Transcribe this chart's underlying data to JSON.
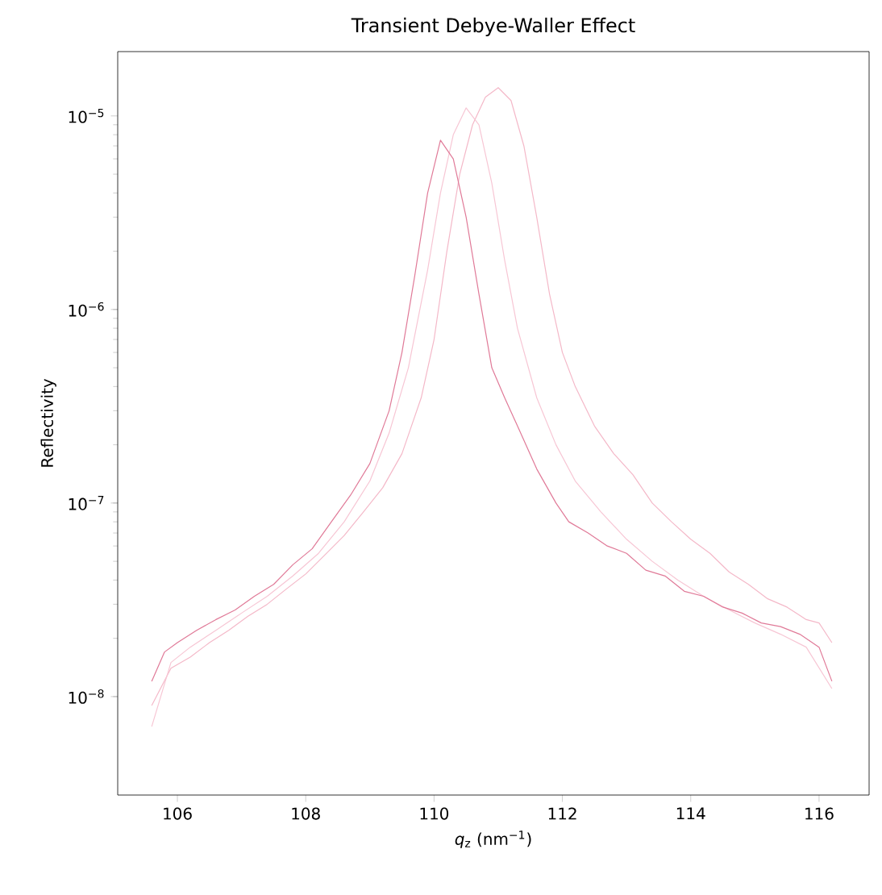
{
  "chart_data": {
    "type": "line",
    "title": "Transient Debye-Waller Effect",
    "xlabel": "*q*$_{z}$ (nm$^{−1}$)",
    "ylabel": "Reflectivity",
    "log": "y",
    "xlim": [
      105.07,
      116.78
    ],
    "ylim": [
      3.1e-09,
      2.15e-05
    ],
    "xticks": [
      106,
      108,
      110,
      112,
      114,
      116
    ],
    "yticks": [
      {
        "value": 1e-08,
        "label": "10$^{−8}$"
      },
      {
        "value": 1e-07,
        "label": "10$^{−7}$"
      },
      {
        "value": 1e-06,
        "label": "10$^{−6}$"
      },
      {
        "value": 1e-05,
        "label": "10$^{−5}$"
      }
    ],
    "series": [
      {
        "color": "#f4b8c8",
        "x": [
          105.6,
          105.9,
          106.2,
          106.5,
          106.8,
          107.1,
          107.4,
          107.7,
          108.0,
          108.3,
          108.6,
          108.9,
          109.2,
          109.5,
          109.8,
          110.0,
          110.2,
          110.4,
          110.6,
          110.8,
          111.0,
          111.2,
          111.4,
          111.6,
          111.8,
          112.0,
          112.2,
          112.5,
          112.8,
          113.1,
          113.4,
          113.7,
          114.0,
          114.3,
          114.6,
          114.9,
          115.2,
          115.5,
          115.8,
          116.0,
          116.2
        ],
        "values": [
          9e-09,
          1.4e-08,
          1.6e-08,
          1.9e-08,
          2.2e-08,
          2.6e-08,
          3e-08,
          3.6e-08,
          4.3e-08,
          5.4e-08,
          6.8e-08,
          9e-08,
          1.2e-07,
          1.8e-07,
          3.5e-07,
          7e-07,
          2e-06,
          5e-06,
          9e-06,
          1.25e-05,
          1.4e-05,
          1.2e-05,
          7e-06,
          3e-06,
          1.2e-06,
          6e-07,
          4e-07,
          2.5e-07,
          1.8e-07,
          1.4e-07,
          1e-07,
          8e-08,
          6.5e-08,
          5.5e-08,
          4.4e-08,
          3.8e-08,
          3.2e-08,
          2.9e-08,
          2.5e-08,
          2.4e-08,
          1.9e-08
        ]
      },
      {
        "color": "#f7c6d4",
        "x": [
          105.6,
          105.9,
          106.2,
          106.6,
          107.0,
          107.4,
          107.8,
          108.2,
          108.6,
          109.0,
          109.3,
          109.6,
          109.9,
          110.1,
          110.3,
          110.5,
          110.7,
          110.9,
          111.1,
          111.3,
          111.6,
          111.9,
          112.2,
          112.6,
          113.0,
          113.4,
          113.8,
          114.2,
          114.6,
          115.0,
          115.4,
          115.8,
          116.2
        ],
        "values": [
          7e-09,
          1.5e-08,
          1.8e-08,
          2.2e-08,
          2.7e-08,
          3.3e-08,
          4.2e-08,
          5.5e-08,
          8e-08,
          1.3e-07,
          2.3e-07,
          5e-07,
          1.6e-06,
          4e-06,
          8e-06,
          1.1e-05,
          9e-06,
          4.5e-06,
          1.8e-06,
          8e-07,
          3.5e-07,
          2e-07,
          1.3e-07,
          9e-08,
          6.5e-08,
          5e-08,
          4e-08,
          3.3e-08,
          2.8e-08,
          2.4e-08,
          2.1e-08,
          1.8e-08,
          1.1e-08
        ]
      },
      {
        "color": "#e07a98",
        "x": [
          105.6,
          105.8,
          106.0,
          106.3,
          106.6,
          106.9,
          107.2,
          107.5,
          107.8,
          108.1,
          108.4,
          108.7,
          109.0,
          109.3,
          109.5,
          109.7,
          109.9,
          110.1,
          110.3,
          110.5,
          110.7,
          110.9,
          111.1,
          111.3,
          111.6,
          111.9,
          112.1,
          112.4,
          112.7,
          113.0,
          113.3,
          113.6,
          113.9,
          114.2,
          114.5,
          114.8,
          115.1,
          115.4,
          115.7,
          116.0,
          116.2
        ],
        "values": [
          1.2e-08,
          1.7e-08,
          1.9e-08,
          2.2e-08,
          2.5e-08,
          2.8e-08,
          3.3e-08,
          3.8e-08,
          4.8e-08,
          5.8e-08,
          8e-08,
          1.1e-07,
          1.6e-07,
          3e-07,
          6e-07,
          1.5e-06,
          4e-06,
          7.5e-06,
          6e-06,
          3e-06,
          1.2e-06,
          5e-07,
          3.5e-07,
          2.5e-07,
          1.5e-07,
          1e-07,
          8e-08,
          7e-08,
          6e-08,
          5.5e-08,
          4.5e-08,
          4.2e-08,
          3.5e-08,
          3.3e-08,
          2.9e-08,
          2.7e-08,
          2.4e-08,
          2.3e-08,
          2.1e-08,
          1.8e-08,
          1.2e-08
        ]
      }
    ]
  }
}
